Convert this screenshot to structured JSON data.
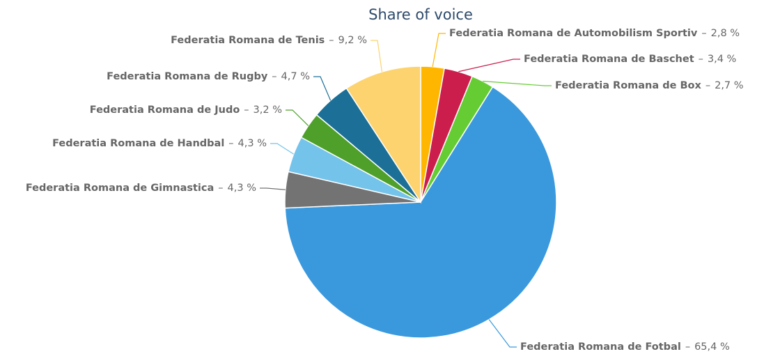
{
  "chart_data": {
    "type": "pie",
    "title": "Share of voice",
    "label_separator": "–",
    "categories": [
      "Federatia Romana de Automobilism Sportiv",
      "Federatia Romana de Baschet",
      "Federatia Romana de Box",
      "Federatia Romana de Fotbal",
      "Federatia Romana de Gimnastica",
      "Federatia Romana de Handbal",
      "Federatia Romana de Judo",
      "Federatia Romana de Rugby",
      "Federatia Romana de Tenis"
    ],
    "values": [
      2.8,
      3.4,
      2.7,
      65.4,
      4.3,
      4.3,
      3.2,
      4.7,
      9.2
    ],
    "value_labels": [
      "2,8 %",
      "3,4 %",
      "2,7 %",
      "65,4 %",
      "4,3 %",
      "4,3 %",
      "3,2 %",
      "4,7 %",
      "9,2 %"
    ],
    "colors": [
      "#ffb600",
      "#cc1e4d",
      "#66cc33",
      "#3a99dd",
      "#737373",
      "#74c3ea",
      "#4ea02a",
      "#1c6f96",
      "#fcd36f"
    ]
  }
}
